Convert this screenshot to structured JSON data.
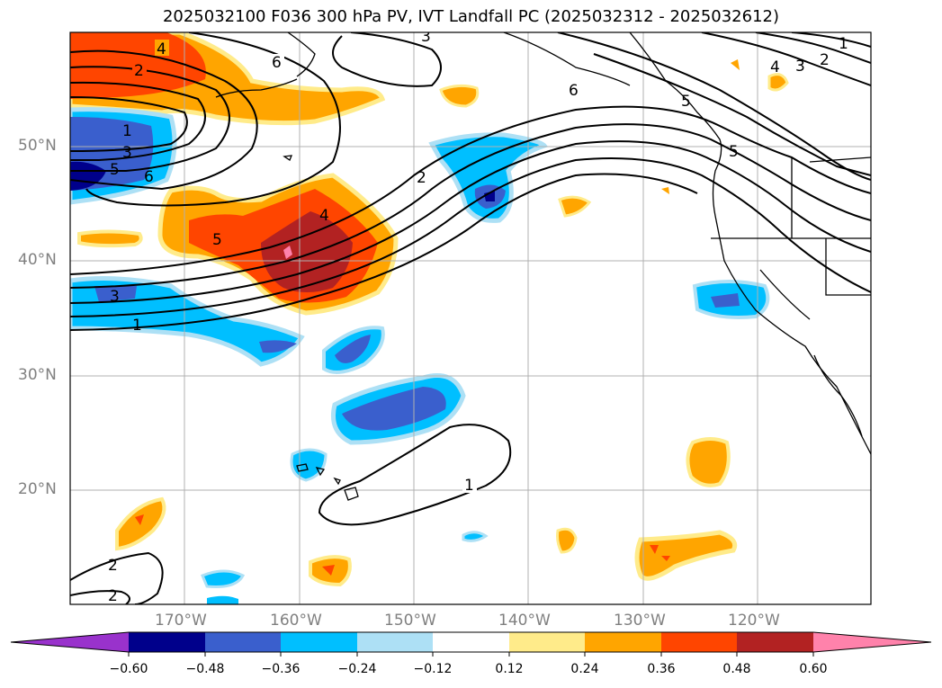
{
  "title": "2025032100 F036 300 hPa PV, IVT Landfall PC (2025032312 - 2025032612)",
  "map": {
    "lat_labels": [
      "50°N",
      "40°N",
      "30°N",
      "20°N"
    ],
    "lon_labels": [
      "170°W",
      "160°W",
      "150°W",
      "140°W",
      "130°W",
      "120°W"
    ],
    "contour_labels": [
      "4",
      "2",
      "6",
      "3",
      "1",
      "3",
      "5",
      "6",
      "5",
      "3",
      "1",
      "2",
      "4",
      "6",
      "5",
      "5",
      "4",
      "3",
      "2",
      "1",
      "1",
      "2"
    ]
  },
  "colorbar": {
    "ticks": [
      "−0.60",
      "−0.48",
      "−0.36",
      "−0.24",
      "−0.12",
      "0.12",
      "0.24",
      "0.36",
      "0.48",
      "0.60"
    ],
    "colors": [
      "#9932CC",
      "#00008B",
      "#3A5FCD",
      "#00BFFF",
      "#ADE0F5",
      "#FFFFFF",
      "#FFEB8A",
      "#FFA500",
      "#FF4500",
      "#B22222",
      "#FF82AB"
    ]
  }
}
